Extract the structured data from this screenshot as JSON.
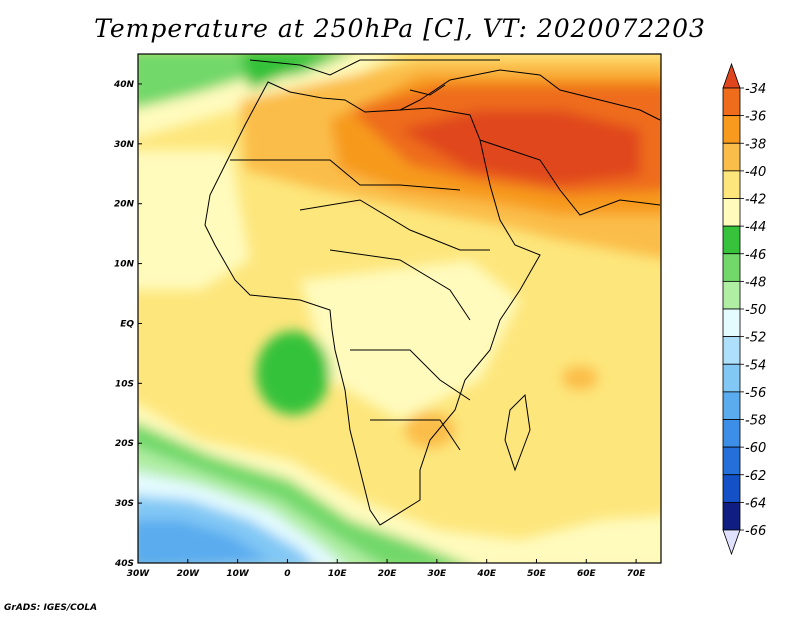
{
  "title": "Temperature at 250hPa [C], VT: 2020072203",
  "footer": "GrADS: IGES/COLA",
  "map": {
    "lon_range": [
      -30,
      75
    ],
    "lat_range": [
      -40,
      45
    ],
    "lon_ticks": [
      "30W",
      "20W",
      "10W",
      "0",
      "10E",
      "20E",
      "30E",
      "40E",
      "50E",
      "60E",
      "70E"
    ],
    "lat_ticks": [
      "40N",
      "30N",
      "20N",
      "10N",
      "EQ",
      "10S",
      "20S",
      "30S",
      "40S"
    ],
    "field": "Temperature",
    "level": "250hPa",
    "units": "C",
    "valid_time": "2020072203"
  },
  "colorbar": {
    "labels": [
      "-34",
      "-36",
      "-38",
      "-40",
      "-42",
      "-44",
      "-46",
      "-48",
      "-50",
      "-52",
      "-54",
      "-56",
      "-58",
      "-60",
      "-62",
      "-64",
      "-66"
    ],
    "colors": [
      "#e0461e",
      "#ee6c1c",
      "#f79a1d",
      "#fbbd4a",
      "#fde67c",
      "#fffbbd",
      "#36c23b",
      "#72d86a",
      "#b0eea4",
      "#e4fbff",
      "#aee0fb",
      "#82c8f5",
      "#5aacef",
      "#3c8ee6",
      "#2470db",
      "#1450c6",
      "#0f1e80"
    ],
    "top_arrow_color": "#e0461e",
    "bottom_arrow_color": "#e0e0ff"
  }
}
